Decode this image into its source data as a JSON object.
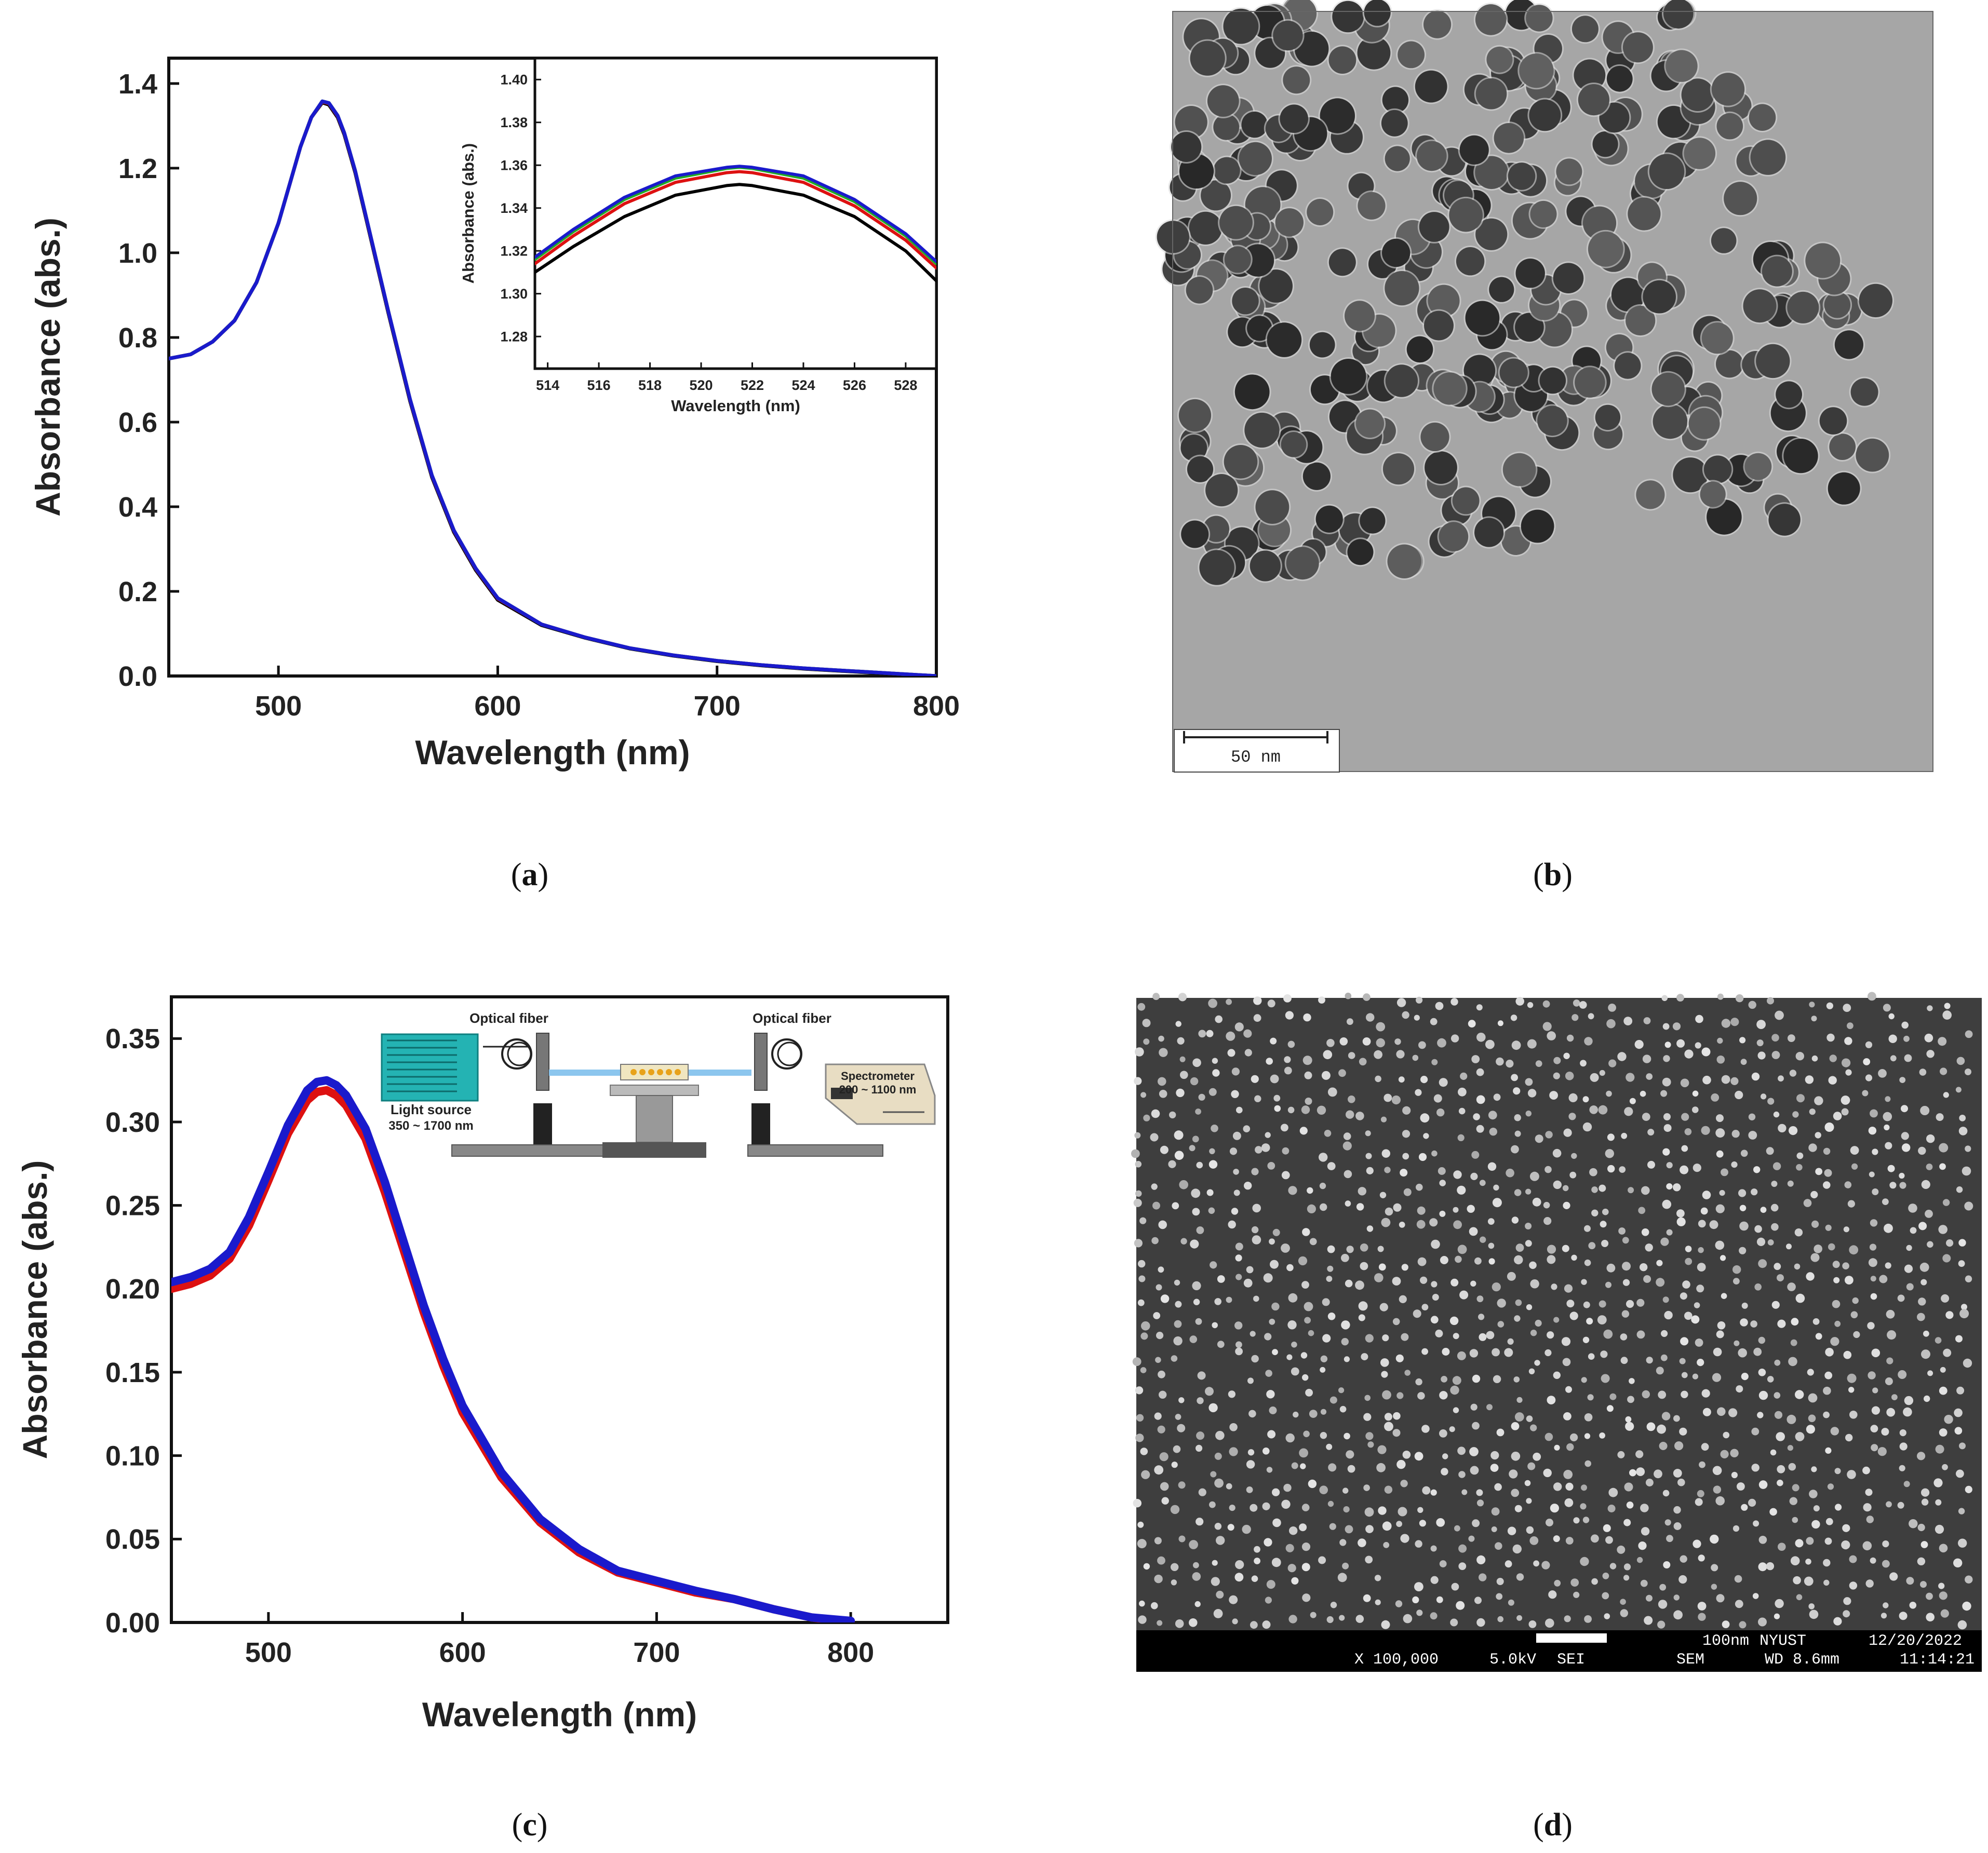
{
  "panels": {
    "a": {
      "caption_letter": "a",
      "chart_data": {
        "type": "line",
        "title": "",
        "xlabel": "Wavelength (nm)",
        "ylabel": "Absorbance (abs.)",
        "xlim": [
          450,
          800
        ],
        "ylim": [
          0,
          1.46
        ],
        "xticks": [
          500,
          600,
          700,
          800
        ],
        "yticks": [
          0.0,
          0.2,
          0.4,
          0.6,
          0.8,
          1.0,
          1.2,
          1.4
        ],
        "x": [
          450,
          460,
          470,
          480,
          490,
          500,
          505,
          510,
          515,
          520,
          523,
          527,
          530,
          535,
          540,
          550,
          560,
          570,
          580,
          590,
          600,
          620,
          640,
          660,
          680,
          700,
          720,
          740,
          760,
          780,
          800
        ],
        "series": [
          {
            "color": "#000000",
            "values": [
              0.75,
              0.76,
              0.79,
              0.84,
              0.93,
              1.07,
              1.16,
              1.25,
              1.32,
              1.355,
              1.35,
              1.32,
              1.28,
              1.19,
              1.08,
              0.86,
              0.65,
              0.47,
              0.34,
              0.25,
              0.18,
              0.12,
              0.09,
              0.065,
              0.048,
              0.035,
              0.025,
              0.017,
              0.011,
              0.005,
              0.0
            ]
          },
          {
            "color": "#dd1111",
            "values": [
              0.75,
              0.76,
              0.79,
              0.84,
              0.93,
              1.07,
              1.16,
              1.25,
              1.32,
              1.357,
              1.353,
              1.323,
              1.283,
              1.193,
              1.083,
              0.863,
              0.653,
              0.473,
              0.343,
              0.253,
              0.183,
              0.122,
              0.091,
              0.066,
              0.049,
              0.036,
              0.026,
              0.018,
              0.012,
              0.006,
              0.0
            ]
          },
          {
            "color": "#22aa22",
            "values": [
              0.75,
              0.76,
              0.79,
              0.84,
              0.93,
              1.07,
              1.16,
              1.25,
              1.32,
              1.358,
              1.354,
              1.324,
              1.284,
              1.194,
              1.084,
              0.864,
              0.654,
              0.474,
              0.344,
              0.254,
              0.184,
              0.122,
              0.091,
              0.066,
              0.049,
              0.036,
              0.026,
              0.018,
              0.012,
              0.006,
              0.0
            ]
          },
          {
            "color": "#1a1acc",
            "values": [
              0.75,
              0.76,
              0.79,
              0.84,
              0.93,
              1.07,
              1.16,
              1.25,
              1.32,
              1.358,
              1.354,
              1.324,
              1.284,
              1.194,
              1.084,
              0.864,
              0.654,
              0.474,
              0.344,
              0.254,
              0.184,
              0.122,
              0.091,
              0.066,
              0.049,
              0.036,
              0.026,
              0.018,
              0.012,
              0.006,
              0.0
            ]
          }
        ],
        "inset": {
          "xlabel": "Wavelength (nm)",
          "ylabel": "Absorbance (abs.)",
          "xlim": [
            513.5,
            529.2
          ],
          "ylim": [
            1.265,
            1.41
          ],
          "xticks": [
            514,
            516,
            518,
            520,
            522,
            524,
            526,
            528
          ],
          "yticks": [
            1.28,
            1.3,
            1.32,
            1.34,
            1.36,
            1.38,
            1.4
          ],
          "x": [
            513.5,
            515,
            517,
            519,
            521,
            521.5,
            522,
            524,
            526,
            528,
            529.2
          ],
          "series": [
            {
              "color": "#000000",
              "values": [
                1.31,
                1.322,
                1.336,
                1.346,
                1.3505,
                1.351,
                1.3505,
                1.346,
                1.336,
                1.32,
                1.306
              ]
            },
            {
              "color": "#dd1111",
              "values": [
                1.314,
                1.327,
                1.342,
                1.352,
                1.3565,
                1.357,
                1.3565,
                1.352,
                1.341,
                1.325,
                1.312
              ]
            },
            {
              "color": "#22aa22",
              "values": [
                1.316,
                1.329,
                1.344,
                1.354,
                1.3585,
                1.359,
                1.3585,
                1.354,
                1.343,
                1.327,
                1.314
              ]
            },
            {
              "color": "#1a1acc",
              "values": [
                1.317,
                1.33,
                1.345,
                1.355,
                1.359,
                1.3595,
                1.359,
                1.355,
                1.344,
                1.328,
                1.315
              ]
            }
          ]
        }
      }
    },
    "b": {
      "caption_letter": "b",
      "scale_bar_label": "50 nm"
    },
    "c": {
      "caption_letter": "c",
      "chart_data": {
        "type": "line",
        "title": "",
        "xlabel": "Wavelength (nm)",
        "ylabel": "Absorbance (abs.)",
        "xlim": [
          450,
          850
        ],
        "ylim": [
          0,
          0.375
        ],
        "xticks": [
          500,
          600,
          700,
          800
        ],
        "yticks": [
          0.0,
          0.05,
          0.1,
          0.15,
          0.2,
          0.25,
          0.3,
          0.35
        ],
        "x": [
          450,
          460,
          470,
          480,
          490,
          500,
          510,
          520,
          525,
          530,
          535,
          540,
          550,
          560,
          570,
          580,
          590,
          600,
          620,
          640,
          660,
          680,
          700,
          720,
          740,
          760,
          780,
          800
        ],
        "series": [
          {
            "color": "#dd1111",
            "values": [
              0.2,
              0.203,
              0.208,
              0.218,
              0.238,
              0.265,
              0.293,
              0.313,
              0.318,
              0.319,
              0.316,
              0.31,
              0.29,
              0.258,
              0.222,
              0.186,
              0.154,
              0.126,
              0.087,
              0.06,
              0.042,
              0.03,
              0.024,
              0.018,
              0.014,
              0.008,
              0.003,
              0.0
            ]
          },
          {
            "color": "#1a1acc",
            "values": [
              0.204,
              0.207,
              0.212,
              0.222,
              0.243,
              0.27,
              0.298,
              0.319,
              0.324,
              0.325,
              0.322,
              0.316,
              0.296,
              0.264,
              0.227,
              0.19,
              0.158,
              0.13,
              0.09,
              0.062,
              0.044,
              0.031,
              0.025,
              0.019,
              0.014,
              0.008,
              0.003,
              0.001
            ]
          }
        ],
        "setup_diagram": {
          "fiber_left_label": "Optical fiber",
          "fiber_right_label": "Optical fiber",
          "light_source_label": "Light source",
          "light_source_range": "350 ~ 1700 nm",
          "spectrometer_label": "Spectrometer",
          "spectrometer_range": "200 ~ 1100 nm"
        }
      }
    },
    "d": {
      "caption_letter": "d",
      "sem": {
        "scale_label": "100nm",
        "institution": "NYUST",
        "date": "12/20/2022",
        "magnification": "X 100,000",
        "voltage": "5.0kV",
        "detector": "SEI",
        "mode": "SEM",
        "working_distance": "WD 8.6mm",
        "time": "11:14:21"
      }
    }
  }
}
